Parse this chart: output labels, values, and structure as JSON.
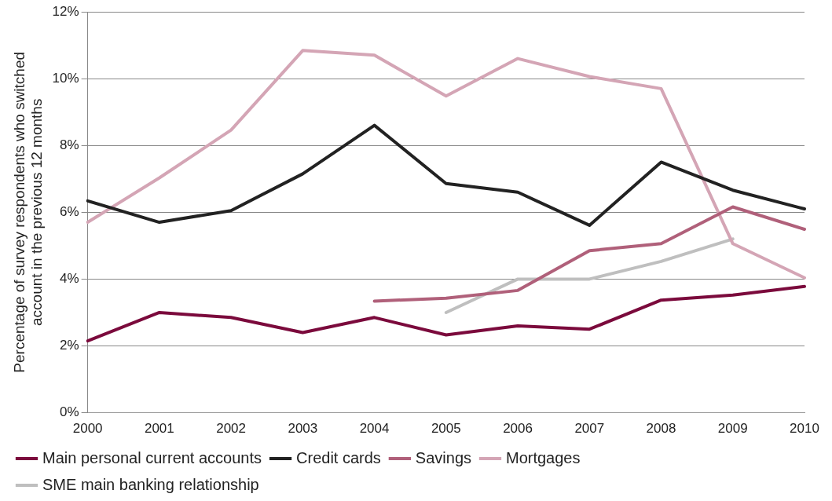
{
  "chart_data": {
    "type": "line",
    "ylabel": "Percentage of survey respondents who switched account in the previous 12 months",
    "categories": [
      "2000",
      "2001",
      "2002",
      "2003",
      "2004",
      "2005",
      "2006",
      "2007",
      "2008",
      "2009",
      "2010"
    ],
    "series": [
      {
        "name": "Main personal current accounts",
        "color": "#7b0a3c",
        "values": [
          2.15,
          3.0,
          2.85,
          2.4,
          2.85,
          2.33,
          2.6,
          2.5,
          3.37,
          3.52,
          3.78
        ]
      },
      {
        "name": "Credit cards",
        "color": "#222222",
        "values": [
          6.34,
          5.7,
          6.05,
          7.15,
          8.6,
          6.86,
          6.6,
          5.61,
          7.5,
          6.66,
          6.1
        ]
      },
      {
        "name": "Savings",
        "color": "#b0607a",
        "values": [
          null,
          null,
          null,
          null,
          3.34,
          3.43,
          3.66,
          4.85,
          5.06,
          6.16,
          5.49
        ]
      },
      {
        "name": "Mortgages",
        "color": "#d4a5b5",
        "values": [
          5.7,
          7.03,
          8.46,
          10.84,
          10.7,
          9.48,
          10.6,
          10.06,
          9.7,
          5.06,
          4.04
        ]
      },
      {
        "name": "SME main banking relationship",
        "color": "#bfbfbf",
        "values": [
          null,
          null,
          null,
          null,
          null,
          3.0,
          4.0,
          4.0,
          4.53,
          5.2,
          null
        ]
      }
    ],
    "ylim": [
      0,
      12
    ],
    "yticks": [
      {
        "value": 0,
        "label": "0%"
      },
      {
        "value": 2,
        "label": "2%"
      },
      {
        "value": 4,
        "label": "4%"
      },
      {
        "value": 6,
        "label": "6%"
      },
      {
        "value": 8,
        "label": "8%"
      },
      {
        "value": 10,
        "label": "10%"
      },
      {
        "value": 12,
        "label": "12%"
      }
    ],
    "grid": "y",
    "legend": "bottom",
    "marker": "none",
    "line_style": "solid"
  }
}
